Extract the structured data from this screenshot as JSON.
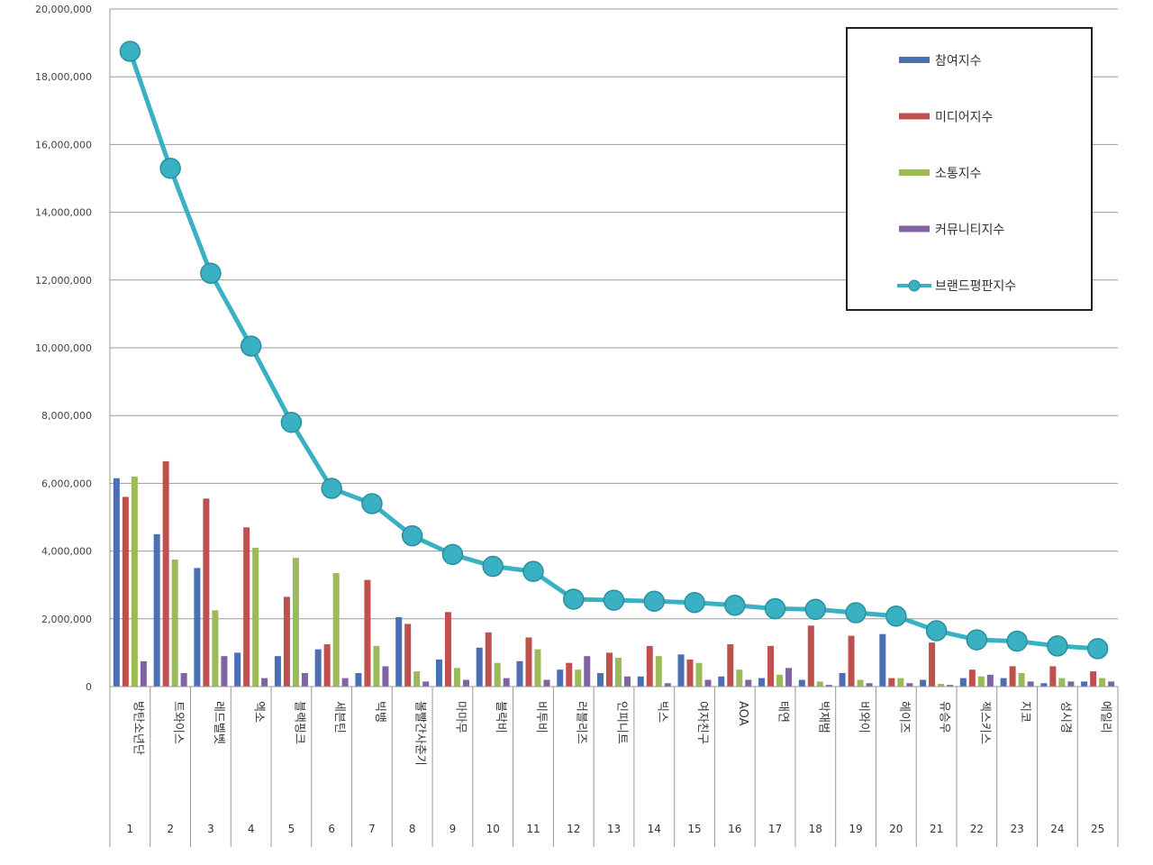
{
  "chart_data": {
    "type": "bar",
    "combo": "bar+line",
    "ylim": [
      0,
      20000000
    ],
    "yticks": [
      "0",
      "2,000,000",
      "4,000,000",
      "6,000,000",
      "8,000,000",
      "10,000,000",
      "12,000,000",
      "14,000,000",
      "16,000,000",
      "18,000,000",
      "20,000,000"
    ],
    "grid": true,
    "legend_position": "top-right",
    "categories": [
      "방탄소년단",
      "트와이스",
      "레드벨벳",
      "엑소",
      "블랙핑크",
      "세븐틴",
      "빅뱅",
      "볼빨간사춘기",
      "마마무",
      "블락비",
      "비투비",
      "러블리즈",
      "인피니트",
      "빅스",
      "여자친구",
      "AOA",
      "태연",
      "박재범",
      "비와이",
      "헤이즈",
      "유승우",
      "젝스키스",
      "지코",
      "성시경",
      "에일리"
    ],
    "ranks": [
      "1",
      "2",
      "3",
      "4",
      "5",
      "6",
      "7",
      "8",
      "9",
      "10",
      "11",
      "12",
      "13",
      "14",
      "15",
      "16",
      "17",
      "18",
      "19",
      "20",
      "21",
      "22",
      "23",
      "24",
      "25"
    ],
    "series": [
      {
        "name": "참여지수",
        "color": "#4a6fb5",
        "type": "bar",
        "values": [
          6150000,
          4500000,
          3500000,
          1000000,
          900000,
          1100000,
          400000,
          2050000,
          800000,
          1150000,
          750000,
          500000,
          400000,
          300000,
          950000,
          300000,
          250000,
          200000,
          400000,
          1550000,
          200000,
          250000,
          250000,
          100000,
          150000
        ]
      },
      {
        "name": "미디어지수",
        "color": "#c0504d",
        "type": "bar",
        "values": [
          5600000,
          6650000,
          5550000,
          4700000,
          2650000,
          1250000,
          3150000,
          1850000,
          2200000,
          1600000,
          1450000,
          700000,
          1000000,
          1200000,
          800000,
          1250000,
          1200000,
          1800000,
          1500000,
          250000,
          1300000,
          500000,
          600000,
          600000,
          450000
        ]
      },
      {
        "name": "소통지수",
        "color": "#9bbb59",
        "type": "bar",
        "values": [
          6200000,
          3750000,
          2250000,
          4100000,
          3800000,
          3350000,
          1200000,
          450000,
          550000,
          700000,
          1100000,
          500000,
          850000,
          900000,
          700000,
          500000,
          350000,
          150000,
          200000,
          250000,
          80000,
          300000,
          400000,
          250000,
          250000
        ]
      },
      {
        "name": "커뮤니티지수",
        "color": "#8064a2",
        "type": "bar",
        "values": [
          750000,
          400000,
          900000,
          250000,
          400000,
          250000,
          600000,
          150000,
          200000,
          250000,
          200000,
          900000,
          300000,
          100000,
          200000,
          200000,
          550000,
          50000,
          100000,
          100000,
          50000,
          350000,
          150000,
          150000,
          150000
        ]
      },
      {
        "name": "브랜드평판지수",
        "color": "#3ab0c3",
        "type": "line",
        "values": [
          18750000,
          15300000,
          12200000,
          10050000,
          7800000,
          5850000,
          5400000,
          4450000,
          3900000,
          3550000,
          3400000,
          2580000,
          2550000,
          2520000,
          2480000,
          2400000,
          2300000,
          2280000,
          2180000,
          2080000,
          1650000,
          1380000,
          1340000,
          1200000,
          1120000
        ]
      }
    ]
  }
}
